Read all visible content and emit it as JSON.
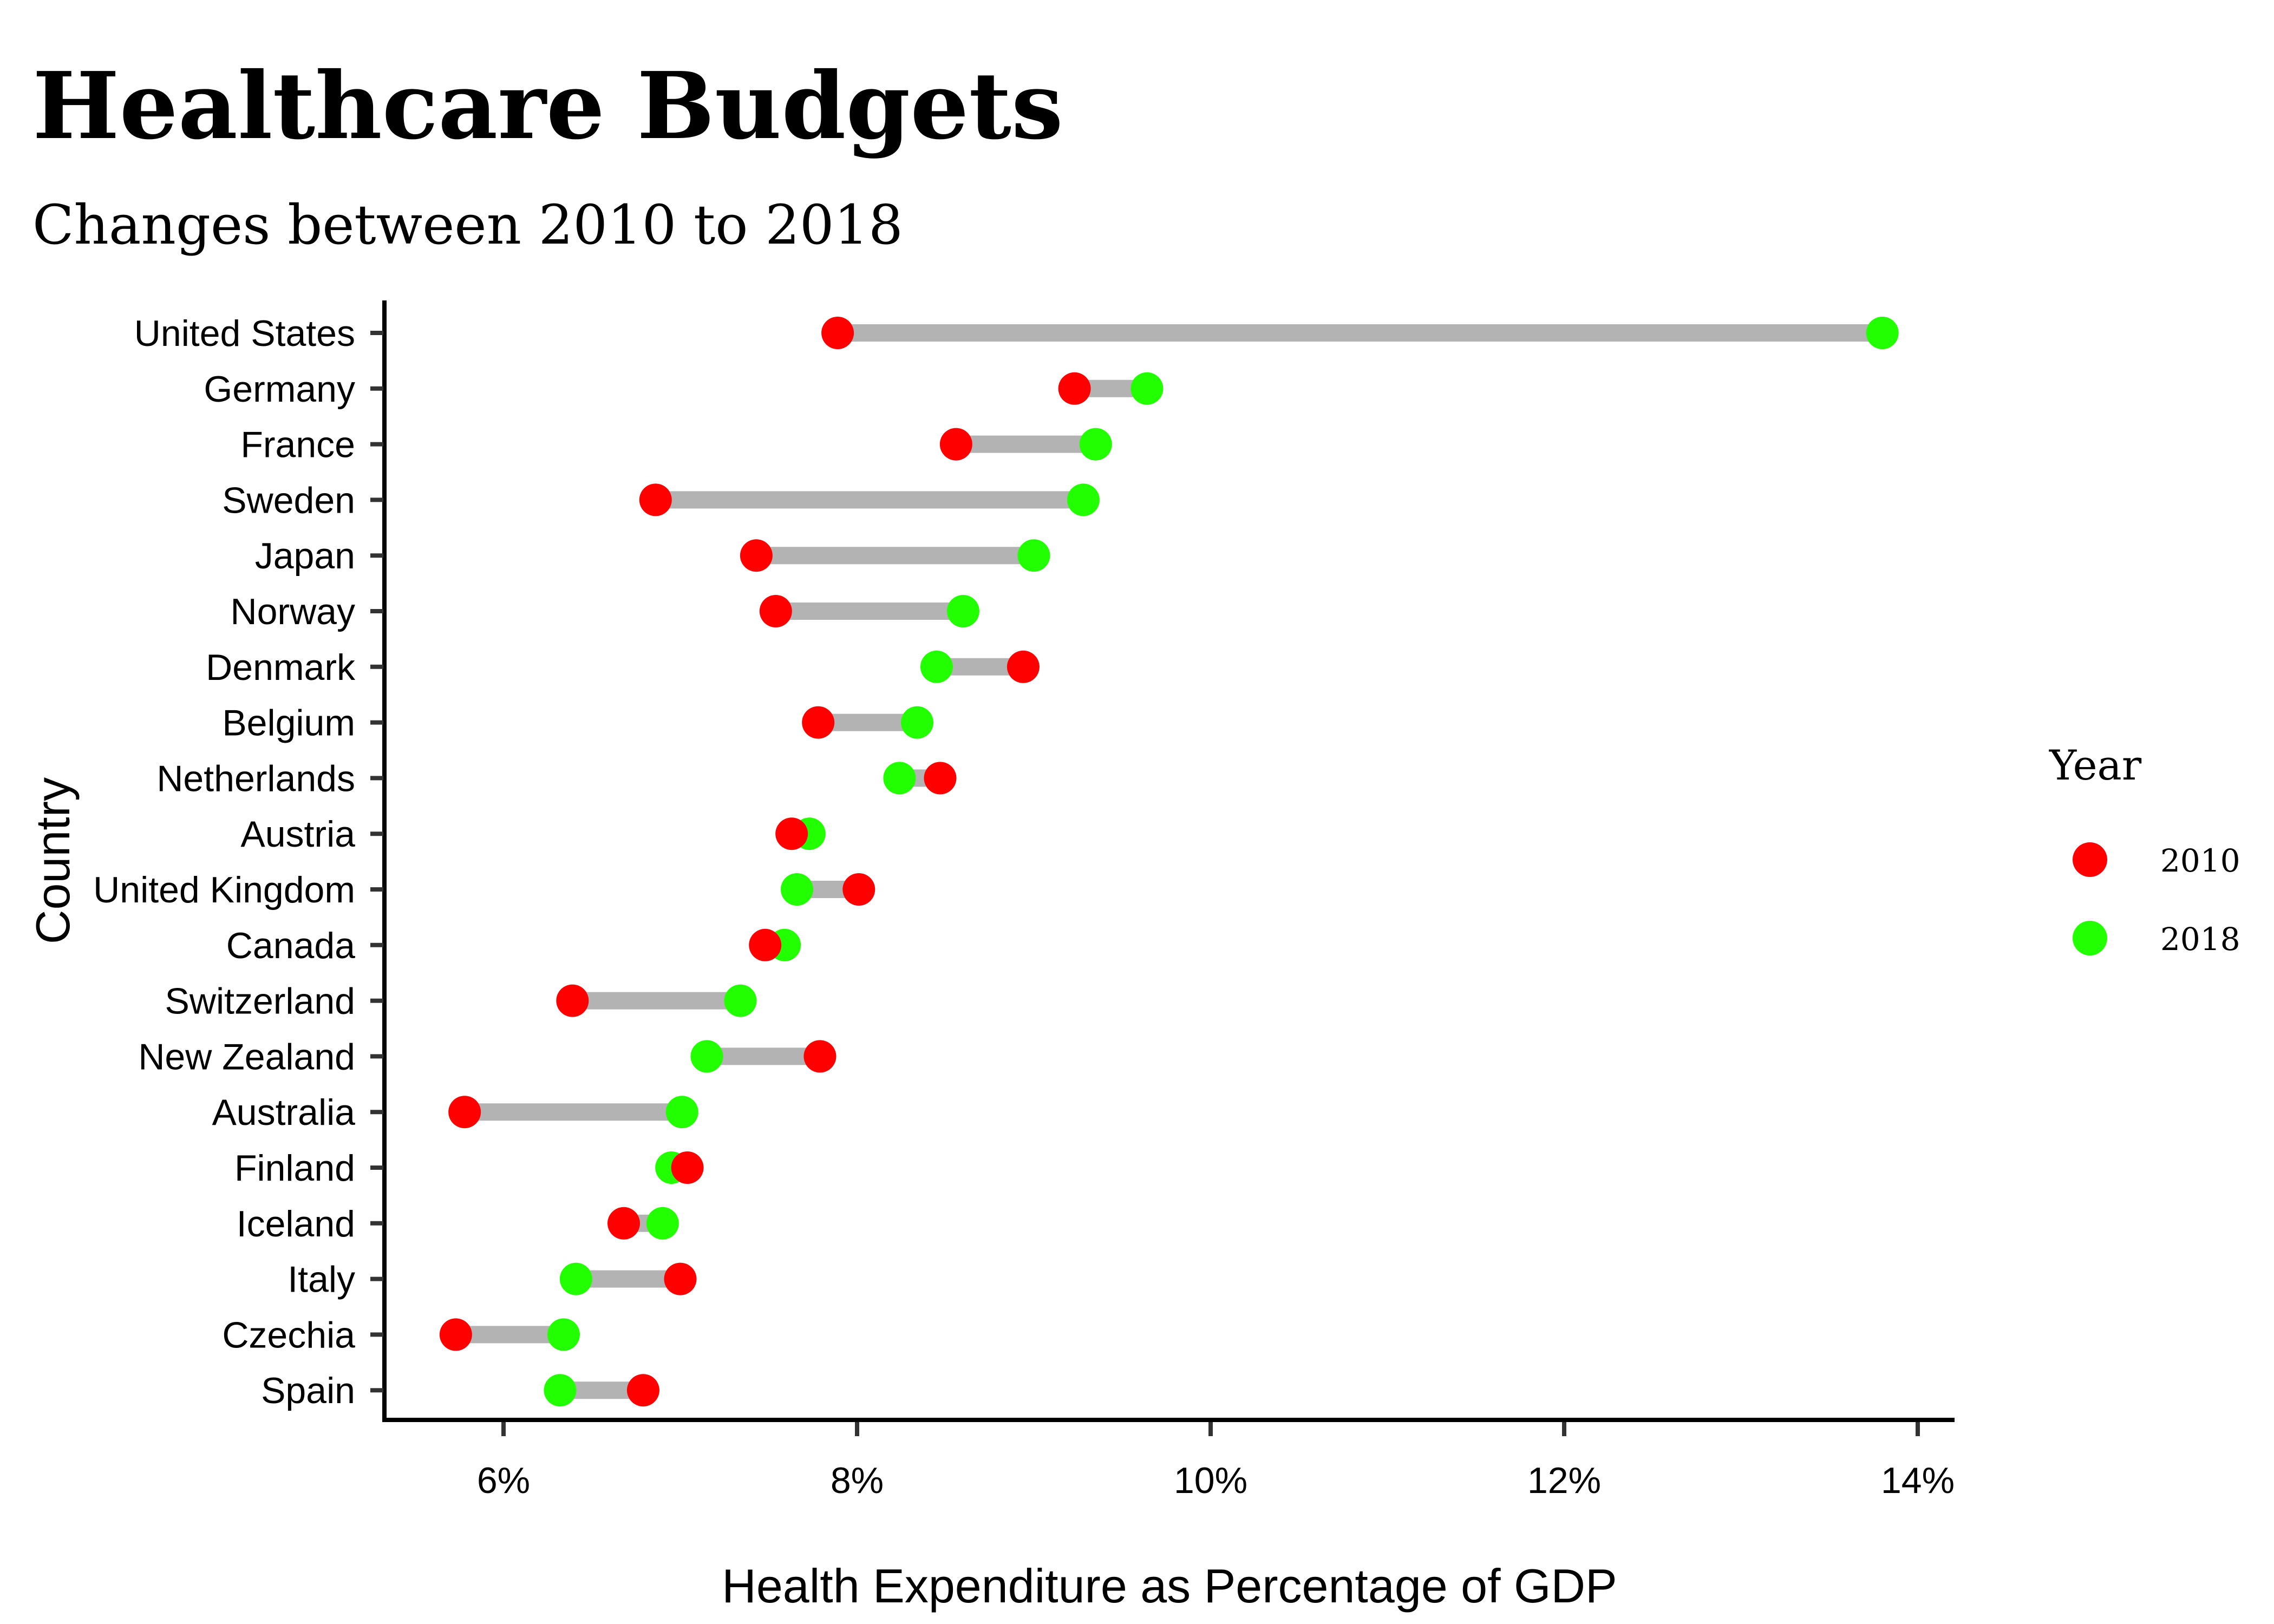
{
  "chart_data": {
    "type": "dumbbell",
    "title": "Healthcare Budgets",
    "subtitle": "Changes between 2010 to 2018",
    "xlabel": "Health Expenditure as Percentage of GDP",
    "ylabel": "Country",
    "xlim": [
      5.33,
      14.2
    ],
    "x_ticks": [
      6,
      8,
      10,
      12,
      14
    ],
    "x_tick_labels": [
      "6%",
      "8%",
      "10%",
      "12%",
      "14%"
    ],
    "grid": false,
    "legend": {
      "title": "Year",
      "position": "right",
      "entries": [
        {
          "label": "2010",
          "color": "#ff0000"
        },
        {
          "label": "2018",
          "color": "#22ff00"
        }
      ]
    },
    "segment_color": "#b3b3b3",
    "categories": [
      "United States",
      "Germany",
      "France",
      "Sweden",
      "Japan",
      "Norway",
      "Denmark",
      "Belgium",
      "Netherlands",
      "Austria",
      "United Kingdom",
      "Canada",
      "Switzerland",
      "New Zealand",
      "Australia",
      "Finland",
      "Iceland",
      "Italy",
      "Czechia",
      "Spain"
    ],
    "series": [
      {
        "name": "2010",
        "values": [
          7.89,
          9.23,
          8.56,
          6.86,
          7.43,
          7.54,
          8.94,
          7.78,
          8.47,
          7.63,
          8.01,
          7.48,
          6.39,
          7.79,
          5.78,
          7.04,
          6.68,
          7.0,
          5.73,
          6.79
        ]
      },
      {
        "name": "2018",
        "values": [
          13.8,
          9.64,
          9.35,
          9.28,
          9.0,
          8.6,
          8.45,
          8.34,
          8.24,
          7.73,
          7.66,
          7.59,
          7.34,
          7.15,
          7.01,
          6.95,
          6.9,
          6.41,
          6.34,
          6.32
        ]
      }
    ]
  }
}
